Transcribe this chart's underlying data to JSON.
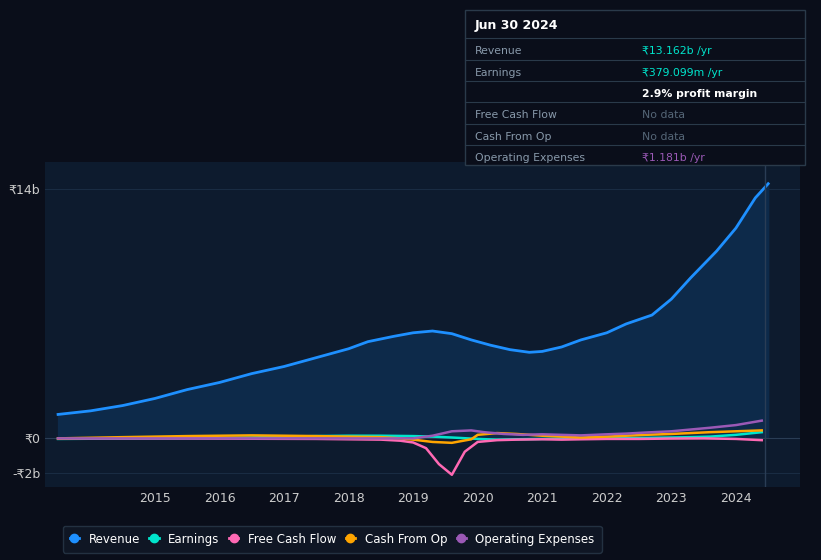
{
  "bg_color": "#0a0e1a",
  "plot_bg_color": "#0d1b2e",
  "grid_color": "#1a2d44",
  "y_label_top": "₹14b",
  "y_label_zero": "₹0",
  "y_label_neg": "-₹2b",
  "x_ticks": [
    2015,
    2016,
    2017,
    2018,
    2019,
    2020,
    2021,
    2022,
    2023,
    2024
  ],
  "ylim": [
    -2.8,
    15.5
  ],
  "xlim": [
    2013.3,
    2025.0
  ],
  "revenue_color": "#1e90ff",
  "revenue_fill": "#0d2a4a",
  "earnings_color": "#00e5cc",
  "free_cash_flow_color": "#ff69b4",
  "cash_from_op_color": "#ffa500",
  "operating_expenses_color": "#9b59b6",
  "legend_items": [
    {
      "label": "Revenue",
      "color": "#1e90ff"
    },
    {
      "label": "Earnings",
      "color": "#00e5cc"
    },
    {
      "label": "Free Cash Flow",
      "color": "#ff69b4"
    },
    {
      "label": "Cash From Op",
      "color": "#ffa500"
    },
    {
      "label": "Operating Expenses",
      "color": "#9b59b6"
    }
  ],
  "revenue": {
    "x": [
      2013.5,
      2014.0,
      2014.5,
      2015.0,
      2015.5,
      2016.0,
      2016.5,
      2017.0,
      2017.5,
      2018.0,
      2018.3,
      2018.7,
      2019.0,
      2019.3,
      2019.6,
      2019.9,
      2020.2,
      2020.5,
      2020.8,
      2021.0,
      2021.3,
      2021.6,
      2022.0,
      2022.3,
      2022.7,
      2023.0,
      2023.3,
      2023.7,
      2024.0,
      2024.3,
      2024.5
    ],
    "y": [
      1.3,
      1.5,
      1.8,
      2.2,
      2.7,
      3.1,
      3.6,
      4.0,
      4.5,
      5.0,
      5.4,
      5.7,
      5.9,
      6.0,
      5.85,
      5.5,
      5.2,
      4.95,
      4.8,
      4.85,
      5.1,
      5.5,
      5.9,
      6.4,
      6.9,
      7.8,
      9.0,
      10.5,
      11.8,
      13.5,
      14.3
    ]
  },
  "earnings": {
    "x": [
      2013.5,
      2014.0,
      2014.5,
      2015.0,
      2015.5,
      2016.0,
      2016.5,
      2017.0,
      2017.5,
      2018.0,
      2018.5,
      2019.0,
      2019.3,
      2019.6,
      2020.0,
      2020.3,
      2020.6,
      2021.0,
      2021.3,
      2021.6,
      2022.0,
      2022.3,
      2022.6,
      2023.0,
      2023.3,
      2023.6,
      2024.0,
      2024.4
    ],
    "y": [
      -0.08,
      -0.07,
      -0.06,
      -0.05,
      -0.04,
      -0.03,
      0.0,
      0.05,
      0.08,
      0.1,
      0.1,
      0.08,
      0.05,
      0.0,
      -0.08,
      -0.12,
      -0.1,
      -0.08,
      -0.06,
      -0.05,
      -0.04,
      -0.03,
      -0.02,
      0.0,
      0.02,
      0.05,
      0.15,
      0.3
    ]
  },
  "free_cash_flow": {
    "x": [
      2013.5,
      2014.5,
      2015.5,
      2016.5,
      2017.5,
      2018.0,
      2018.5,
      2018.8,
      2019.0,
      2019.2,
      2019.4,
      2019.6,
      2019.8,
      2020.0,
      2020.3,
      2020.6,
      2021.0,
      2021.3,
      2021.6,
      2022.0,
      2022.5,
      2023.0,
      2023.5,
      2024.0,
      2024.4
    ],
    "y": [
      -0.05,
      -0.05,
      -0.05,
      -0.07,
      -0.08,
      -0.1,
      -0.12,
      -0.18,
      -0.28,
      -0.6,
      -1.5,
      -2.1,
      -0.8,
      -0.25,
      -0.15,
      -0.12,
      -0.1,
      -0.12,
      -0.1,
      -0.08,
      -0.08,
      -0.06,
      -0.05,
      -0.08,
      -0.15
    ]
  },
  "cash_from_op": {
    "x": [
      2013.5,
      2014.5,
      2015.0,
      2015.5,
      2016.0,
      2016.5,
      2017.0,
      2017.5,
      2018.0,
      2018.5,
      2018.8,
      2019.0,
      2019.3,
      2019.6,
      2019.9,
      2020.0,
      2020.3,
      2020.6,
      2021.0,
      2021.3,
      2021.6,
      2022.0,
      2022.3,
      2022.6,
      2023.0,
      2023.3,
      2023.6,
      2024.0,
      2024.4
    ],
    "y": [
      -0.05,
      0.02,
      0.05,
      0.08,
      0.1,
      0.12,
      0.1,
      0.08,
      0.05,
      0.02,
      -0.05,
      -0.12,
      -0.25,
      -0.3,
      -0.1,
      0.15,
      0.25,
      0.2,
      0.1,
      0.05,
      0.0,
      0.05,
      0.1,
      0.15,
      0.2,
      0.25,
      0.3,
      0.35,
      0.4
    ]
  },
  "operating_expenses": {
    "x": [
      2013.5,
      2014.5,
      2015.5,
      2016.5,
      2017.5,
      2018.5,
      2019.0,
      2019.3,
      2019.6,
      2019.9,
      2020.1,
      2020.4,
      2020.7,
      2021.0,
      2021.3,
      2021.6,
      2022.0,
      2022.3,
      2022.6,
      2023.0,
      2023.3,
      2023.6,
      2024.0,
      2024.4
    ],
    "y": [
      -0.05,
      -0.05,
      -0.05,
      -0.05,
      -0.05,
      -0.05,
      -0.05,
      0.1,
      0.35,
      0.4,
      0.3,
      0.2,
      0.15,
      0.18,
      0.15,
      0.12,
      0.18,
      0.22,
      0.28,
      0.35,
      0.45,
      0.55,
      0.7,
      0.95
    ]
  },
  "tooltip": {
    "title": "Jun 30 2024",
    "bg_color": "#0a0e1a",
    "border_color": "#2a3a4a",
    "rows": [
      {
        "label": "Revenue",
        "value": "₹13.162b /yr",
        "value_color": "#00e5cc"
      },
      {
        "label": "Earnings",
        "value": "₹379.099m /yr",
        "value_color": "#00e5cc"
      },
      {
        "label": "",
        "value": "2.9% profit margin",
        "value_color": "#ffffff",
        "bold": true
      },
      {
        "label": "Free Cash Flow",
        "value": "No data",
        "value_color": "#556677"
      },
      {
        "label": "Cash From Op",
        "value": "No data",
        "value_color": "#556677"
      },
      {
        "label": "Operating Expenses",
        "value": "₹1.181b /yr",
        "value_color": "#9b59b6"
      }
    ]
  }
}
